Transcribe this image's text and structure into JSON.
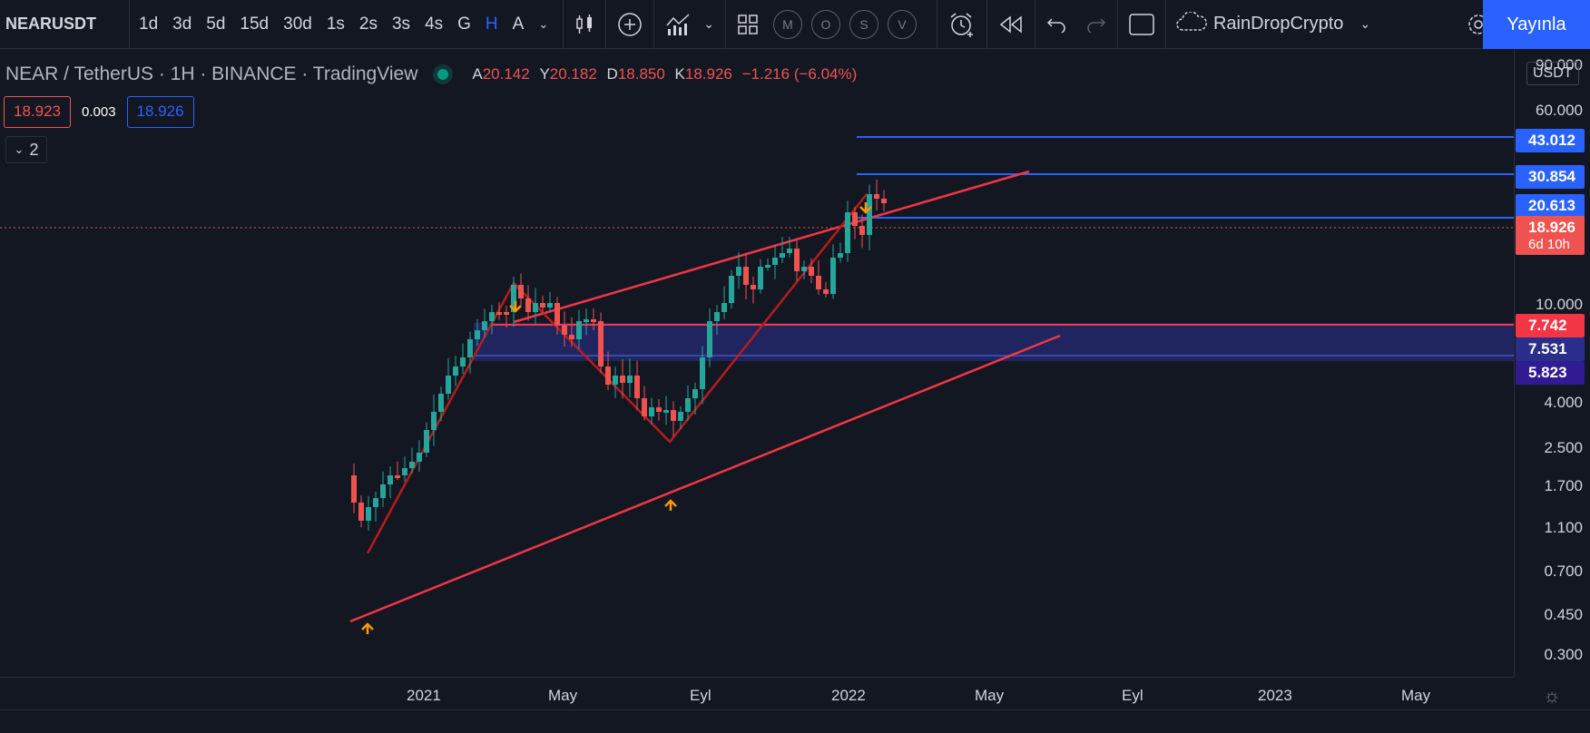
{
  "toolbar": {
    "symbol": "NEARUSDT",
    "intervals": [
      "1d",
      "3d",
      "5d",
      "15d",
      "30d",
      "1s",
      "2s",
      "3s",
      "4s",
      "G",
      "H",
      "A"
    ],
    "active_interval": "H",
    "circle_buttons": [
      "M",
      "O",
      "S",
      "V"
    ],
    "layout_name": "RainDropCrypto",
    "publish_label": "Yayınla"
  },
  "legend": {
    "title": "NEAR / TetherUS · 1H · BINANCE · TradingView",
    "o_label": "A",
    "o": "20.142",
    "h_label": "Y",
    "h": "20.182",
    "l_label": "D",
    "l": "18.850",
    "c_label": "K",
    "c": "18.926",
    "change": "−1.216 (−6.04%)",
    "bid": "18.923",
    "spread": "0.003",
    "ask": "18.926",
    "indicators_toggle": "2"
  },
  "price_scale": {
    "currency": "USDT",
    "labels": [
      "90.000",
      "60.000",
      "10.000",
      "4.000",
      "2.500",
      "1.700",
      "1.100",
      "0.700",
      "0.450",
      "0.300"
    ],
    "tags": [
      {
        "text": "43.012",
        "color": "#2962ff"
      },
      {
        "text": "30.854",
        "color": "#2962ff"
      },
      {
        "text": "20.613",
        "color": "#2962ff"
      },
      {
        "text": "18.926",
        "color": "#ef5350",
        "sub": "6d 10h"
      },
      {
        "text": "7.742",
        "color": "#f23645"
      },
      {
        "text": "7.531",
        "color": "#2a2e8a"
      },
      {
        "text": "5.823",
        "color": "#311b92"
      }
    ]
  },
  "time_axis": {
    "labels": [
      "2021",
      "May",
      "Eyl",
      "2022",
      "May",
      "Eyl",
      "2023",
      "May"
    ]
  },
  "chart_data": {
    "type": "candlestick",
    "symbol": "NEARUSDT",
    "scale": "log",
    "horizontal_levels": [
      43.012,
      30.854,
      20.613,
      7.742,
      7.531,
      5.823
    ],
    "current_price": 18.926
  },
  "colors": {
    "up": "#26a69a",
    "down": "#ef5350",
    "accent": "#2962ff",
    "trend": "#f23645",
    "zone": "#2a2e8a",
    "marker": "#ff9800"
  }
}
